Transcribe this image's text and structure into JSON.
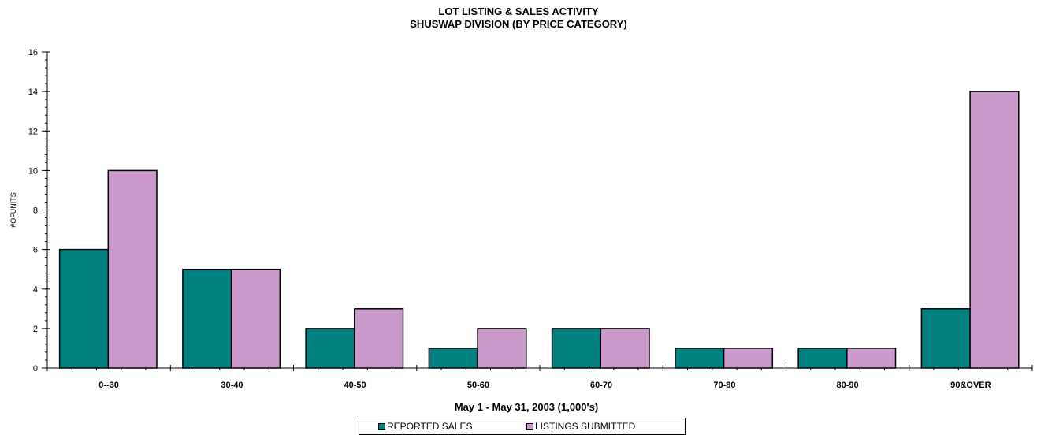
{
  "colors": {
    "series_sales": "#008080",
    "series_listings": "#cc99cc",
    "axis": "#000000"
  },
  "chart_data": {
    "type": "bar",
    "title": "LOT LISTING & SALES ACTIVITY",
    "subtitle": "SHUSWAP DIVISION (BY PRICE CATEGORY)",
    "xlabel": "May 1 - May 31, 2003 (1,000's)",
    "ylabel": "#OFUNITS",
    "categories": [
      "0--30",
      "30-40",
      "40-50",
      "50-60",
      "60-70",
      "70-80",
      "80-90",
      "90&OVER"
    ],
    "series": [
      {
        "name": "REPORTED SALES",
        "values": [
          6,
          5,
          2,
          1,
          2,
          1,
          1,
          3
        ]
      },
      {
        "name": "LISTINGS SUBMITTED",
        "values": [
          10,
          5,
          3,
          2,
          2,
          1,
          1,
          14
        ]
      }
    ],
    "ylim": [
      0,
      16
    ],
    "yticks": [
      0,
      2,
      4,
      6,
      8,
      10,
      12,
      14,
      16
    ],
    "grid": false,
    "legend_position": "bottom-center"
  }
}
